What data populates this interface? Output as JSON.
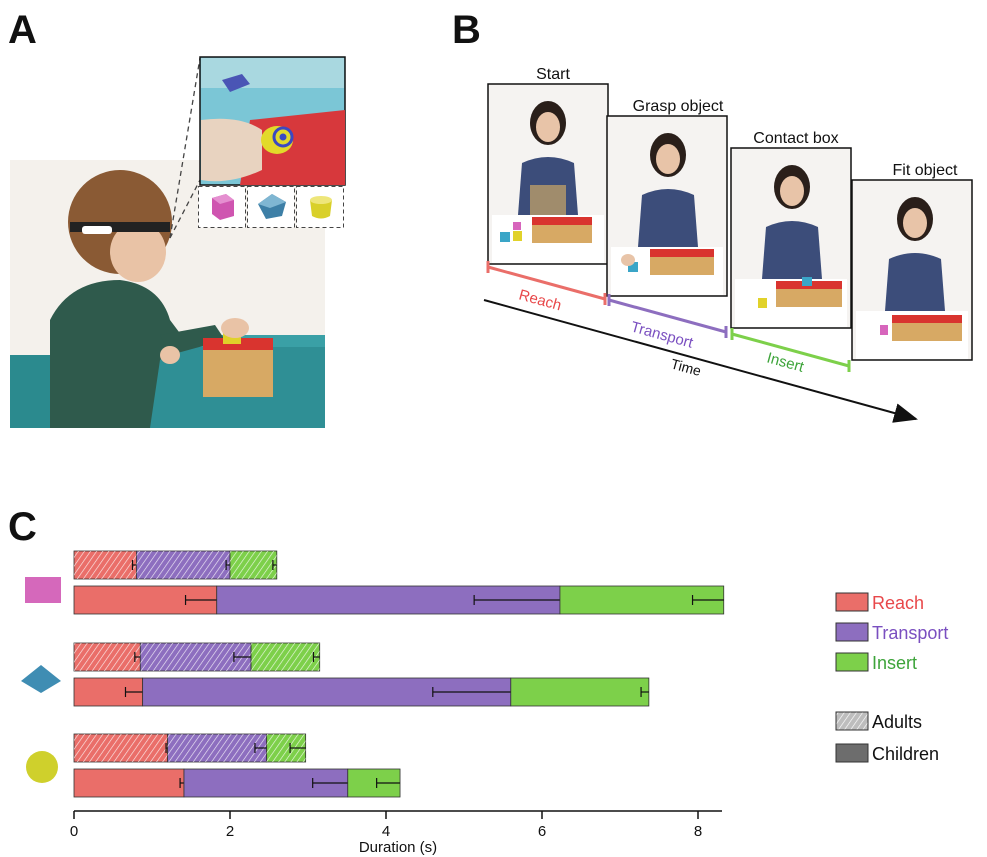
{
  "panels": {
    "a": "A",
    "b": "B",
    "c": "C"
  },
  "timeline": {
    "frames": [
      "Start",
      "Grasp object",
      "Contact box",
      "Fit object"
    ],
    "phases": [
      "Reach",
      "Transport",
      "Insert"
    ],
    "axis_label": "Time"
  },
  "colors": {
    "reach": "#ea6e69",
    "transport": "#8d6ebf",
    "insert": "#7dd04a",
    "reach_text": "#e8484a",
    "transport_text": "#7a4fc0",
    "insert_text": "#3da43a",
    "object_pink": "#d568bb",
    "object_blue": "#3f8db3",
    "object_yellow": "#cfd02c"
  },
  "chart_data": {
    "type": "bar",
    "orientation": "horizontal",
    "stacked": true,
    "xlabel": "Duration (s)",
    "xlim": [
      0,
      8.3
    ],
    "xticks": [
      0,
      2,
      4,
      6,
      8
    ],
    "groups": [
      {
        "object": "pink-cube",
        "adults": {
          "Reach": 0.8,
          "Transport": 1.2,
          "Insert": 0.6,
          "errors": [
            0.05,
            0.05,
            0.05
          ]
        },
        "children": {
          "Reach": 1.83,
          "Transport": 4.4,
          "Insert": 2.1,
          "errors": [
            0.4,
            1.1,
            0.4
          ]
        }
      },
      {
        "object": "blue-diamond",
        "adults": {
          "Reach": 0.85,
          "Transport": 1.42,
          "Insert": 0.88,
          "errors": [
            0.07,
            0.22,
            0.08
          ]
        },
        "children": {
          "Reach": 0.88,
          "Transport": 4.72,
          "Insert": 1.77,
          "errors": [
            0.22,
            1.0,
            0.1
          ]
        }
      },
      {
        "object": "yellow-circle",
        "adults": {
          "Reach": 1.2,
          "Transport": 1.27,
          "Insert": 0.5,
          "errors": [
            0.02,
            0.15,
            0.2
          ]
        },
        "children": {
          "Reach": 1.41,
          "Transport": 2.1,
          "Insert": 0.67,
          "errors": [
            0.05,
            0.45,
            0.3
          ]
        }
      }
    ],
    "legend": {
      "phases": [
        "Reach",
        "Transport",
        "Insert"
      ],
      "groups": [
        "Adults",
        "Children"
      ],
      "position": "right"
    }
  }
}
